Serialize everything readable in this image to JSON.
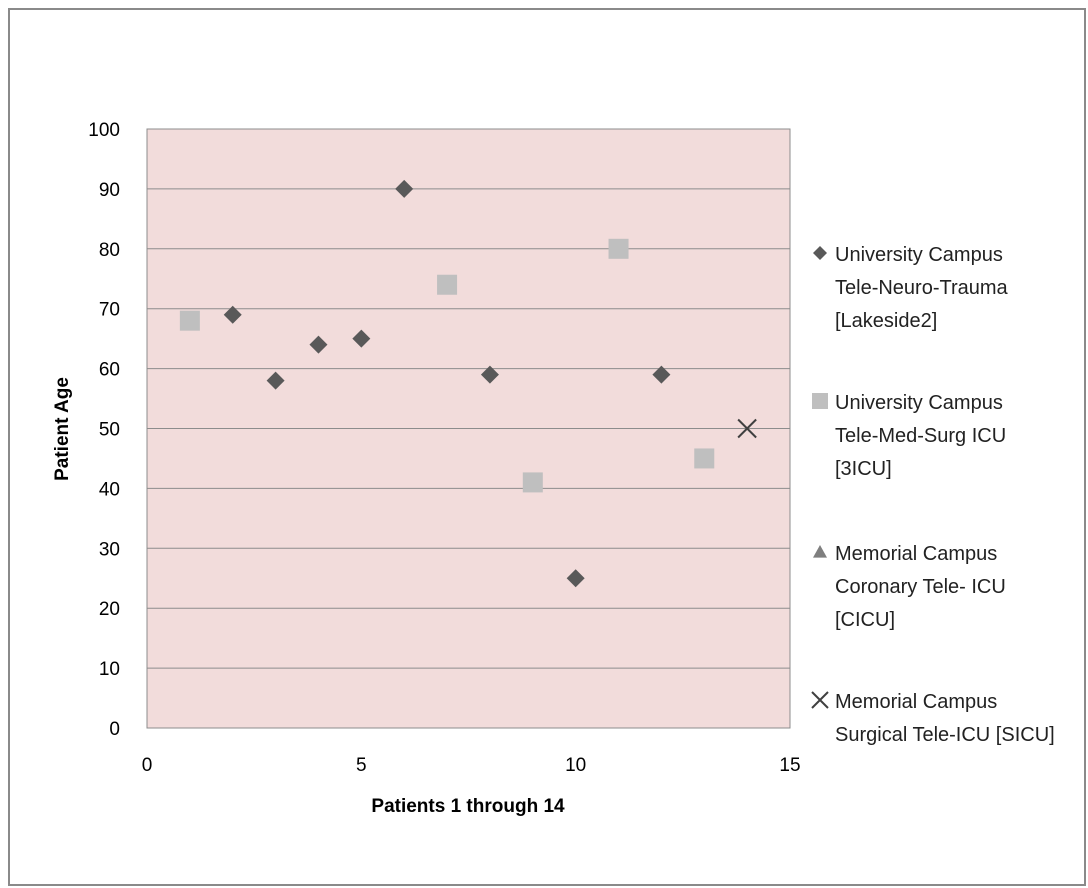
{
  "chart_data": {
    "type": "scatter",
    "xlabel": "Patients 1 through 14",
    "ylabel": "Patient Age",
    "xlim": [
      0,
      15
    ],
    "ylim": [
      0,
      100
    ],
    "x_ticks": [
      "0",
      "5",
      "10",
      "15"
    ],
    "y_ticks": [
      "0",
      "10",
      "20",
      "30",
      "40",
      "50",
      "60",
      "70",
      "80",
      "90",
      "100"
    ],
    "grid": "horizontal",
    "plot_background": "#f2dcdb",
    "legend_position": "right",
    "series": [
      {
        "name": [
          "University Campus",
          "Tele-Neuro-Trauma",
          "[Lakeside2]"
        ],
        "marker": "diamond",
        "color": "#595959",
        "points": [
          [
            2,
            69
          ],
          [
            3,
            58
          ],
          [
            4,
            64
          ],
          [
            5,
            65
          ],
          [
            6,
            90
          ],
          [
            8,
            59
          ],
          [
            10,
            25
          ],
          [
            12,
            59
          ]
        ]
      },
      {
        "name": [
          "University Campus",
          "Tele-Med-Surg ICU",
          "[3ICU]"
        ],
        "marker": "square",
        "color": "#bfbfbf",
        "points": [
          [
            1,
            68
          ],
          [
            7,
            74
          ],
          [
            9,
            41
          ],
          [
            11,
            80
          ],
          [
            13,
            45
          ]
        ]
      },
      {
        "name": [
          "Memorial Campus",
          "Coronary Tele- ICU",
          "[CICU]"
        ],
        "marker": "triangle",
        "color": "#7f7f7f",
        "points": []
      },
      {
        "name": [
          "Memorial Campus",
          "Surgical Tele-ICU [SICU]"
        ],
        "marker": "x",
        "color": "#404040",
        "points": [
          [
            14,
            50
          ]
        ]
      }
    ]
  }
}
